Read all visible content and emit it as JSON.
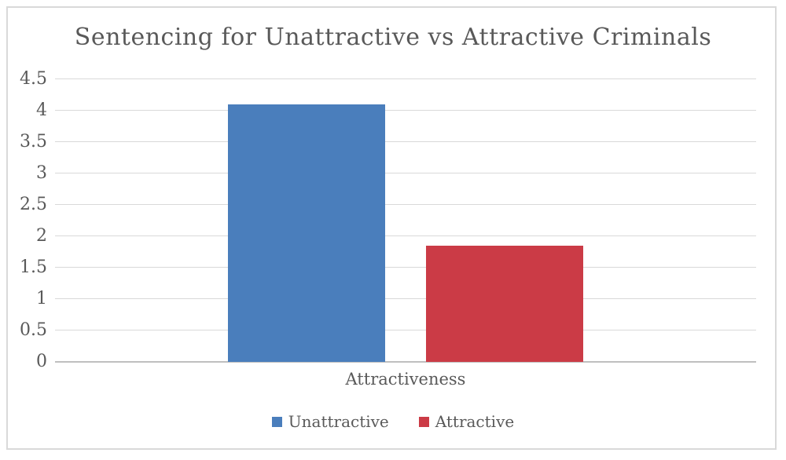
{
  "chart_data": {
    "type": "bar",
    "title": "Sentencing for Unattractive vs Attractive Criminals",
    "categories": [
      "Attractiveness"
    ],
    "series": [
      {
        "name": "Unattractive",
        "values": [
          4.1
        ],
        "color": "#4a7ebc"
      },
      {
        "name": "Attractive",
        "values": [
          1.85
        ],
        "color": "#cb3b46"
      }
    ],
    "xlabel": "Attractiveness",
    "ylabel": "",
    "ylim": [
      0,
      4.5
    ],
    "ytick_step": 0.5,
    "yticks": [
      "0",
      "0.5",
      "1",
      "1.5",
      "2",
      "2.5",
      "3",
      "3.5",
      "4",
      "4.5"
    ],
    "grid": true,
    "legend_position": "bottom"
  },
  "colors": {
    "background": "#ffffff",
    "frame_border": "#d9d9d9",
    "gridline": "#d9d9d9",
    "axis_line": "#bfbfbf",
    "text": "#595959"
  }
}
